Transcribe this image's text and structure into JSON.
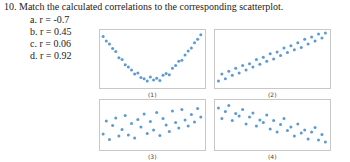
{
  "question": {
    "title": "10. Match the calculated correlations to the corresponding scatterplot.",
    "options": [
      "a.  r = -0.7",
      "b.  r = 0.45",
      "c.  r = 0.06",
      "d.  r = 0.92"
    ]
  },
  "chart_data": [
    {
      "type": "scatter",
      "x_label": "(1)",
      "color": "#5b9bd5",
      "marker": "circle",
      "grid": false,
      "tick_labels": false,
      "xlim": [
        0,
        10
      ],
      "ylim": [
        0,
        10
      ],
      "x": [
        0.3,
        0.6,
        0.9,
        1.2,
        1.5,
        1.8,
        2.1,
        2.4,
        2.7,
        3.0,
        3.3,
        3.6,
        3.9,
        4.2,
        4.5,
        4.8,
        5.1,
        5.4,
        5.7,
        6.0,
        6.3,
        6.6,
        6.9,
        7.2,
        7.5,
        7.8,
        8.1,
        8.4,
        8.7,
        9.0,
        9.3,
        9.6
      ],
      "values": [
        8.9,
        8.1,
        7.6,
        6.8,
        6.3,
        5.2,
        4.9,
        4.0,
        3.6,
        3.1,
        2.4,
        2.6,
        1.8,
        1.6,
        1.2,
        1.9,
        1.4,
        1.7,
        1.3,
        2.2,
        2.5,
        2.3,
        3.4,
        3.9,
        4.6,
        4.8,
        5.7,
        6.4,
        6.9,
        7.8,
        8.4,
        9.2
      ]
    },
    {
      "type": "scatter",
      "x_label": "(2)",
      "color": "#5b9bd5",
      "marker": "circle",
      "grid": false,
      "tick_labels": false,
      "xlim": [
        0,
        10
      ],
      "ylim": [
        0,
        10
      ],
      "x": [
        0.3,
        0.6,
        0.9,
        1.2,
        1.5,
        1.8,
        2.1,
        2.4,
        2.7,
        3.0,
        3.3,
        3.6,
        3.9,
        4.2,
        4.5,
        4.8,
        5.1,
        5.4,
        5.7,
        6.0,
        6.3,
        6.6,
        6.9,
        7.2,
        7.5,
        7.8,
        8.1,
        8.4,
        8.7,
        9.0,
        9.3,
        9.6
      ],
      "values": [
        1.2,
        2.4,
        1.6,
        2.9,
        2.2,
        3.4,
        2.6,
        3.9,
        3.1,
        4.2,
        3.6,
        4.9,
        4.1,
        5.3,
        4.6,
        5.9,
        5.0,
        6.2,
        5.6,
        6.9,
        6.1,
        7.3,
        6.6,
        7.8,
        7.0,
        8.4,
        7.6,
        8.8,
        8.1,
        9.3,
        8.6,
        9.5
      ]
    },
    {
      "type": "scatter",
      "x_label": "(3)",
      "color": "#5b9bd5",
      "marker": "circle",
      "grid": false,
      "tick_labels": false,
      "xlim": [
        0,
        10
      ],
      "ylim": [
        0,
        10
      ],
      "x": [
        0.3,
        0.6,
        0.9,
        1.2,
        1.5,
        1.8,
        2.1,
        2.4,
        2.7,
        3.0,
        3.3,
        3.6,
        3.9,
        4.2,
        4.5,
        4.8,
        5.1,
        5.4,
        5.7,
        6.0,
        6.3,
        6.6,
        6.9,
        7.2,
        7.5,
        7.8,
        8.1,
        8.4,
        8.7,
        9.0,
        9.3,
        9.6
      ],
      "values": [
        3.2,
        5.8,
        2.1,
        4.9,
        6.4,
        2.8,
        4.1,
        6.9,
        3.0,
        5.3,
        2.4,
        6.1,
        4.6,
        7.2,
        3.3,
        5.7,
        4.0,
        7.5,
        2.9,
        6.3,
        5.0,
        3.7,
        7.8,
        5.5,
        4.4,
        8.1,
        6.0,
        4.8,
        7.1,
        5.6,
        8.3,
        6.6
      ]
    },
    {
      "type": "scatter",
      "x_label": "(4)",
      "color": "#5b9bd5",
      "marker": "circle",
      "grid": false,
      "tick_labels": false,
      "xlim": [
        0,
        10
      ],
      "ylim": [
        0,
        10
      ],
      "x": [
        0.3,
        0.6,
        0.9,
        1.2,
        1.5,
        1.8,
        2.1,
        2.4,
        2.7,
        3.0,
        3.3,
        3.6,
        3.9,
        4.2,
        4.5,
        4.8,
        5.1,
        5.4,
        5.7,
        6.0,
        6.3,
        6.6,
        6.9,
        7.2,
        7.5,
        7.8,
        8.1,
        8.4,
        8.7,
        9.0,
        9.3,
        9.6
      ],
      "values": [
        8.4,
        6.3,
        7.7,
        8.9,
        5.9,
        7.3,
        6.8,
        8.1,
        5.2,
        6.6,
        7.4,
        4.8,
        6.0,
        5.5,
        7.0,
        4.2,
        5.9,
        3.6,
        5.1,
        6.3,
        3.9,
        4.6,
        2.8,
        5.2,
        3.4,
        4.0,
        2.2,
        3.6,
        4.5,
        2.0,
        3.1,
        1.6
      ]
    }
  ]
}
